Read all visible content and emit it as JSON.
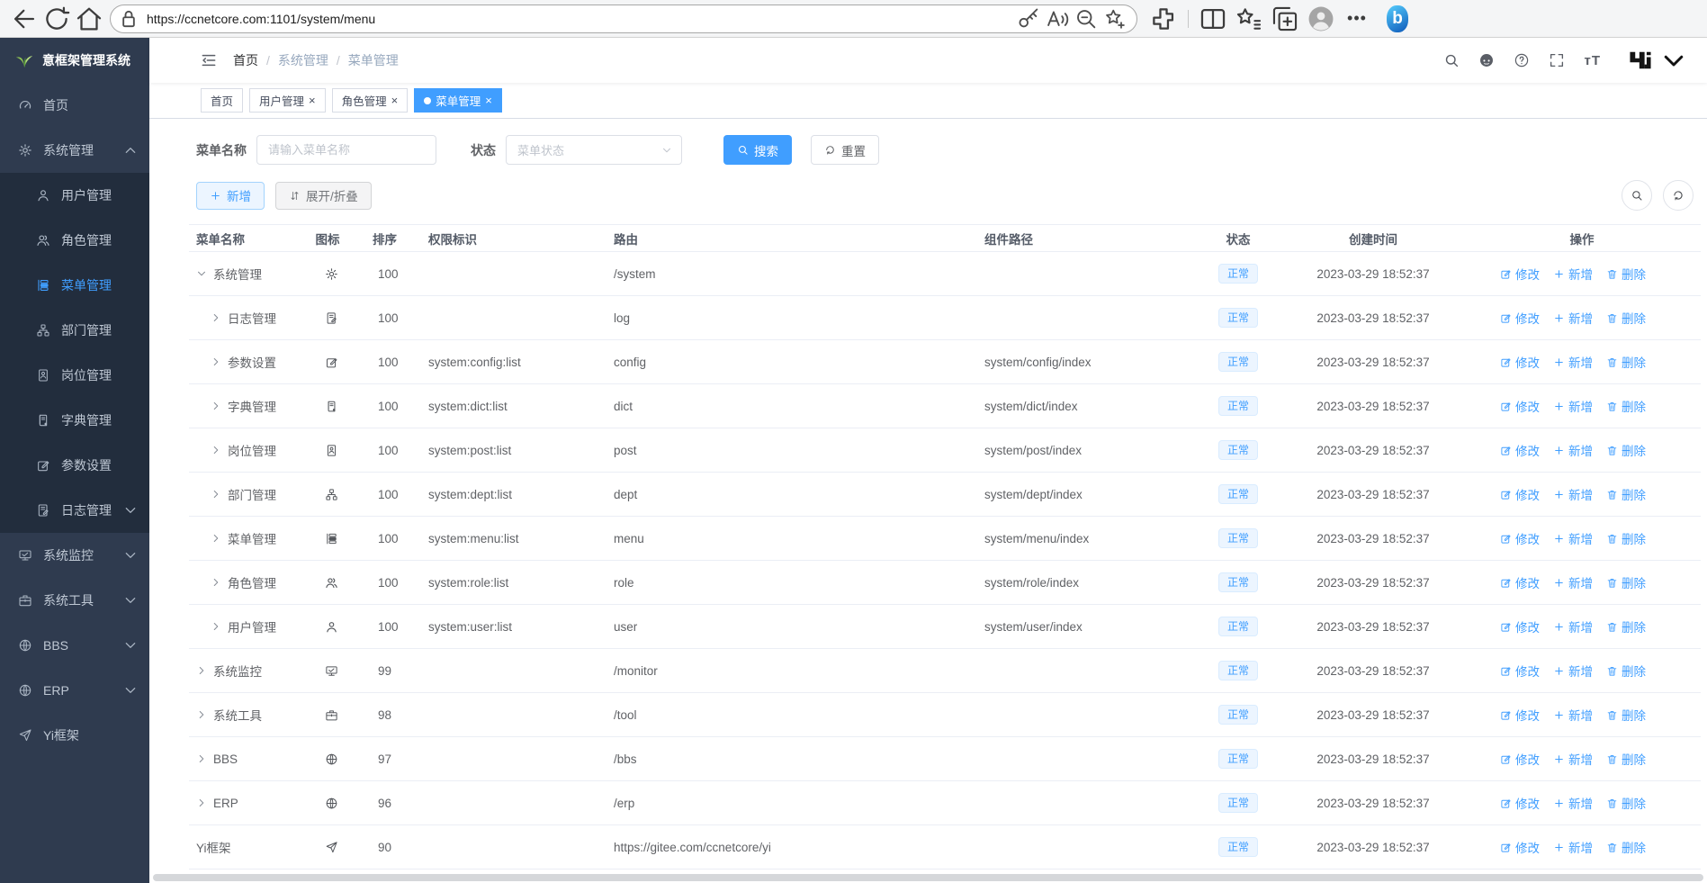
{
  "browser": {
    "url": "https://ccnetcore.com:1101/system/menu",
    "nav_icons": [
      "back",
      "reload",
      "home"
    ],
    "url_bar_left_icon": "lock",
    "url_action_icons": [
      "key",
      "read-aloud",
      "zoom-out",
      "favorite-add"
    ],
    "toolbar_icons": [
      "extensions",
      "divider",
      "split-screen",
      "favorites-bar",
      "collections",
      "profile",
      "more",
      "bing"
    ]
  },
  "sidebar": {
    "logo_text": "意框架管理系统",
    "items": [
      {
        "label": "首页",
        "icon": "dashboard"
      },
      {
        "label": "系统管理",
        "icon": "gear",
        "expanded": true,
        "children": [
          {
            "label": "用户管理",
            "icon": "user"
          },
          {
            "label": "角色管理",
            "icon": "role"
          },
          {
            "label": "菜单管理",
            "icon": "menu",
            "active": true
          },
          {
            "label": "部门管理",
            "icon": "dept"
          },
          {
            "label": "岗位管理",
            "icon": "post"
          },
          {
            "label": "字典管理",
            "icon": "dict"
          },
          {
            "label": "参数设置",
            "icon": "config"
          },
          {
            "label": "日志管理",
            "icon": "log",
            "has_children": true
          }
        ]
      },
      {
        "label": "系统监控",
        "icon": "monitor",
        "has_children": true
      },
      {
        "label": "系统工具",
        "icon": "tool",
        "has_children": true
      },
      {
        "label": "BBS",
        "icon": "globe",
        "has_children": true
      },
      {
        "label": "ERP",
        "icon": "globe",
        "has_children": true
      },
      {
        "label": "Yi框架",
        "icon": "send"
      }
    ]
  },
  "header": {
    "breadcrumb": [
      "首页",
      "系统管理",
      "菜单管理"
    ],
    "breadcrumb_separator": "/",
    "icons": [
      "search",
      "github",
      "question",
      "fullscreen",
      "fontsize"
    ],
    "logo_icon": "yi-logo"
  },
  "tabs": [
    {
      "label": "首页",
      "closable": false,
      "active": false
    },
    {
      "label": "用户管理",
      "closable": true,
      "active": false
    },
    {
      "label": "角色管理",
      "closable": true,
      "active": false
    },
    {
      "label": "菜单管理",
      "closable": true,
      "active": true
    }
  ],
  "filters": {
    "name_label": "菜单名称",
    "name_placeholder": "请输入菜单名称",
    "status_label": "状态",
    "status_placeholder": "菜单状态",
    "search_label": "搜索",
    "reset_label": "重置"
  },
  "toolbar": {
    "add_label": "新增",
    "expand_label": "展开/折叠"
  },
  "table": {
    "columns": [
      "菜单名称",
      "图标",
      "排序",
      "权限标识",
      "路由",
      "组件路径",
      "状态",
      "创建时间",
      "操作"
    ],
    "actions": {
      "edit": "修改",
      "add": "新增",
      "delete": "删除"
    },
    "rows": [
      {
        "name": "系统管理",
        "icon": "gear",
        "level": 0,
        "expand": "down",
        "sort": "100",
        "perm": "",
        "route": "/system",
        "component": "",
        "status": "正常",
        "created": "2023-03-29 18:52:37"
      },
      {
        "name": "日志管理",
        "icon": "log",
        "level": 1,
        "expand": "right",
        "sort": "100",
        "perm": "",
        "route": "log",
        "component": "",
        "status": "正常",
        "created": "2023-03-29 18:52:37"
      },
      {
        "name": "参数设置",
        "icon": "config",
        "level": 1,
        "expand": "right",
        "sort": "100",
        "perm": "system:config:list",
        "route": "config",
        "component": "system/config/index",
        "status": "正常",
        "created": "2023-03-29 18:52:37"
      },
      {
        "name": "字典管理",
        "icon": "dict",
        "level": 1,
        "expand": "right",
        "sort": "100",
        "perm": "system:dict:list",
        "route": "dict",
        "component": "system/dict/index",
        "status": "正常",
        "created": "2023-03-29 18:52:37"
      },
      {
        "name": "岗位管理",
        "icon": "post",
        "level": 1,
        "expand": "right",
        "sort": "100",
        "perm": "system:post:list",
        "route": "post",
        "component": "system/post/index",
        "status": "正常",
        "created": "2023-03-29 18:52:37"
      },
      {
        "name": "部门管理",
        "icon": "dept",
        "level": 1,
        "expand": "right",
        "sort": "100",
        "perm": "system:dept:list",
        "route": "dept",
        "component": "system/dept/index",
        "status": "正常",
        "created": "2023-03-29 18:52:37"
      },
      {
        "name": "菜单管理",
        "icon": "menu",
        "level": 1,
        "expand": "right",
        "sort": "100",
        "perm": "system:menu:list",
        "route": "menu",
        "component": "system/menu/index",
        "status": "正常",
        "created": "2023-03-29 18:52:37"
      },
      {
        "name": "角色管理",
        "icon": "role",
        "level": 1,
        "expand": "right",
        "sort": "100",
        "perm": "system:role:list",
        "route": "role",
        "component": "system/role/index",
        "status": "正常",
        "created": "2023-03-29 18:52:37"
      },
      {
        "name": "用户管理",
        "icon": "user",
        "level": 1,
        "expand": "right",
        "sort": "100",
        "perm": "system:user:list",
        "route": "user",
        "component": "system/user/index",
        "status": "正常",
        "created": "2023-03-29 18:52:37"
      },
      {
        "name": "系统监控",
        "icon": "monitor",
        "level": 0,
        "expand": "right",
        "sort": "99",
        "perm": "",
        "route": "/monitor",
        "component": "",
        "status": "正常",
        "created": "2023-03-29 18:52:37"
      },
      {
        "name": "系统工具",
        "icon": "tool",
        "level": 0,
        "expand": "right",
        "sort": "98",
        "perm": "",
        "route": "/tool",
        "component": "",
        "status": "正常",
        "created": "2023-03-29 18:52:37"
      },
      {
        "name": "BBS",
        "icon": "globe",
        "level": 0,
        "expand": "right",
        "sort": "97",
        "perm": "",
        "route": "/bbs",
        "component": "",
        "status": "正常",
        "created": "2023-03-29 18:52:37"
      },
      {
        "name": "ERP",
        "icon": "globe",
        "level": 0,
        "expand": "right",
        "sort": "96",
        "perm": "",
        "route": "/erp",
        "component": "",
        "status": "正常",
        "created": "2023-03-29 18:52:37"
      },
      {
        "name": "Yi框架",
        "icon": "send",
        "level": 0,
        "expand": "none",
        "sort": "90",
        "perm": "",
        "route": "https://gitee.com/ccnetcore/yi",
        "component": "",
        "status": "正常",
        "created": "2023-03-29 18:52:37"
      }
    ]
  }
}
